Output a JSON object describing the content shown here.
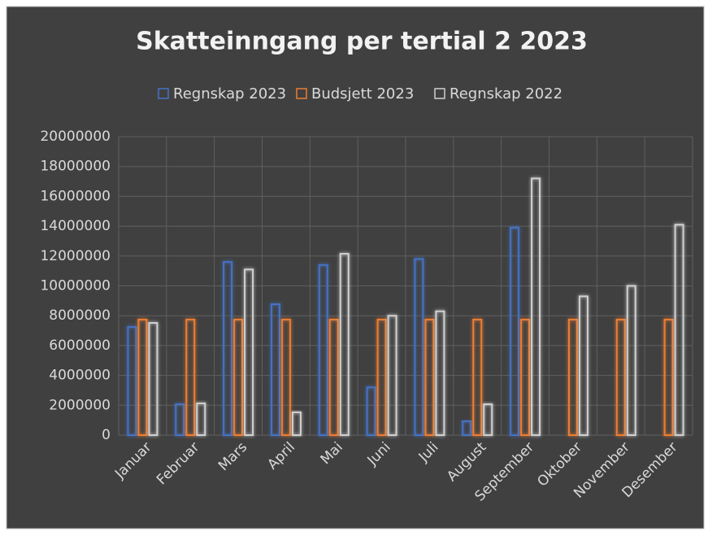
{
  "chart_data": {
    "type": "bar",
    "title": "Skatteinngang per tertial 2 2023",
    "categories": [
      "Januar",
      "Februar",
      "Mars",
      "April",
      "Mai",
      "Juni",
      "Juli",
      "August",
      "September",
      "Oktober",
      "November",
      "Desember"
    ],
    "series": [
      {
        "name": "Regnskap 2023",
        "color": "#4472c4",
        "values": [
          7250000,
          2070000,
          11600000,
          8770000,
          11400000,
          3200000,
          11800000,
          930000,
          13900000,
          null,
          null,
          null
        ]
      },
      {
        "name": "Budsjett 2023",
        "color": "#ed7d31",
        "values": [
          7740000,
          7740000,
          7740000,
          7740000,
          7740000,
          7740000,
          7740000,
          7740000,
          7740000,
          7740000,
          7740000,
          7740000
        ]
      },
      {
        "name": "Regnskap 2022",
        "color": "#d0d0d0",
        "values": [
          7520000,
          2130000,
          11100000,
          1530000,
          12150000,
          8000000,
          8300000,
          2070000,
          17200000,
          9300000,
          10000000,
          14100000
        ]
      }
    ],
    "ylim": [
      0,
      20000000
    ],
    "yticks": [
      0,
      2000000,
      4000000,
      6000000,
      8000000,
      10000000,
      12000000,
      14000000,
      16000000,
      18000000,
      20000000
    ],
    "grid": true,
    "legend": "top"
  }
}
